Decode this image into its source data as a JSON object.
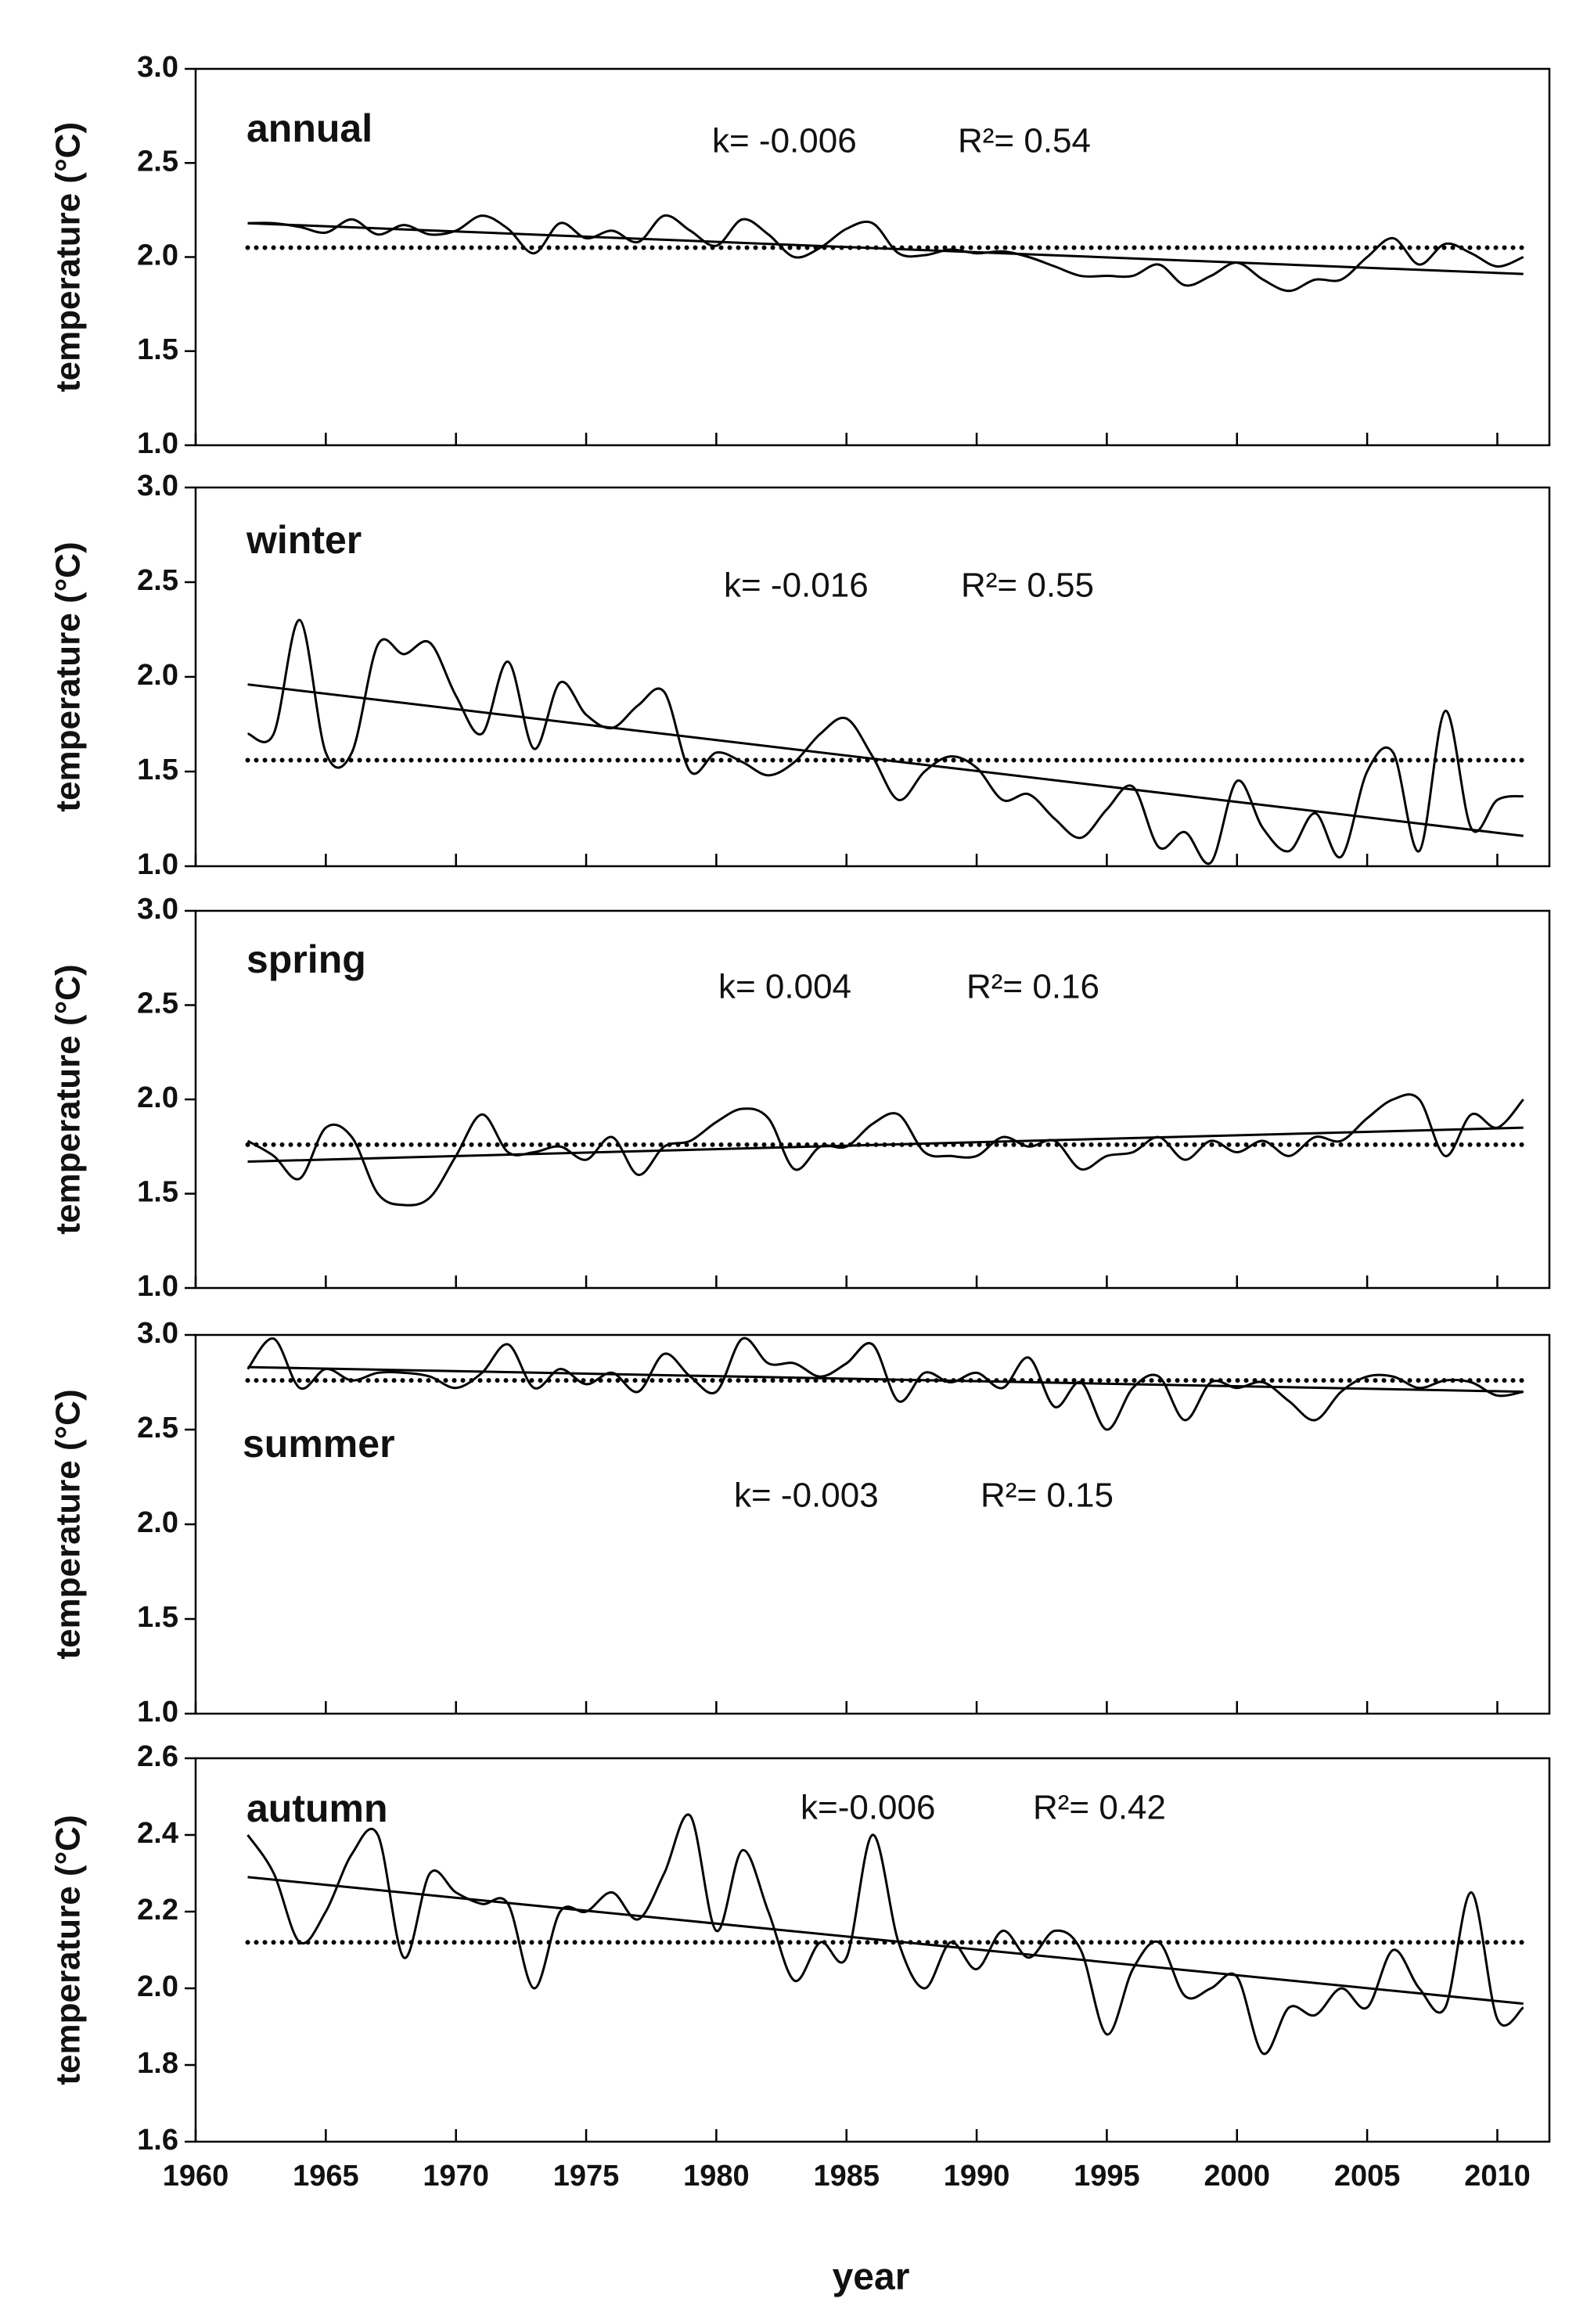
{
  "chart_data": [
    {
      "type": "line",
      "label": "annual",
      "k_text": "k= -0.006",
      "r2_text": "R²= 0.54",
      "ylabel": "temperature (°C)",
      "x": [
        1962,
        1963,
        1964,
        1965,
        1966,
        1967,
        1968,
        1969,
        1970,
        1971,
        1972,
        1973,
        1974,
        1975,
        1976,
        1977,
        1978,
        1979,
        1980,
        1981,
        1982,
        1983,
        1984,
        1985,
        1986,
        1987,
        1988,
        1989,
        1990,
        1991,
        1992,
        1993,
        1994,
        1995,
        1996,
        1997,
        1998,
        1999,
        2000,
        2001,
        2002,
        2003,
        2004,
        2005,
        2006,
        2007,
        2008,
        2009,
        2010,
        2011
      ],
      "series": [
        {
          "color": "#000000",
          "style": "smooth",
          "values": [
            2.18,
            2.18,
            2.16,
            2.13,
            2.2,
            2.12,
            2.17,
            2.12,
            2.14,
            2.22,
            2.15,
            2.02,
            2.18,
            2.1,
            2.14,
            2.08,
            2.22,
            2.14,
            2.06,
            2.2,
            2.12,
            2.0,
            2.05,
            2.15,
            2.18,
            2.02,
            2.01,
            2.04,
            2.02,
            2.03,
            2.0,
            1.95,
            1.9,
            1.9,
            1.9,
            1.96,
            1.85,
            1.9,
            1.97,
            1.88,
            1.82,
            1.88,
            1.88,
            2.0,
            2.1,
            1.96,
            2.07,
            2.02,
            1.95,
            2.0
          ]
        },
        {
          "color": "#000000",
          "style": "solid",
          "x": [
            1962,
            2011
          ],
          "values": [
            2.18,
            1.91
          ]
        },
        {
          "color": "#000000",
          "style": "dotted",
          "x": [
            1962,
            2011
          ],
          "values": [
            2.05,
            2.05
          ]
        }
      ],
      "xlim": [
        1960,
        2012
      ],
      "xticks": [
        1960,
        1965,
        1970,
        1975,
        1980,
        1985,
        1990,
        1995,
        2000,
        2005,
        2010
      ],
      "ylim": [
        1,
        3
      ],
      "yticks": [
        {
          "value": 1,
          "label": "1.0"
        },
        1.5,
        {
          "value": 2,
          "label": "2.0"
        },
        2.5,
        {
          "value": 3,
          "label": "3.0"
        }
      ]
    },
    {
      "type": "line",
      "label": "winter",
      "k_text": "k= -0.016",
      "r2_text": "R²= 0.55",
      "ylabel": "temperature (°C)",
      "x": [
        1962,
        1963,
        1964,
        1965,
        1966,
        1967,
        1968,
        1969,
        1970,
        1971,
        1972,
        1973,
        1974,
        1975,
        1976,
        1977,
        1978,
        1979,
        1980,
        1981,
        1982,
        1983,
        1984,
        1985,
        1986,
        1987,
        1988,
        1989,
        1990,
        1991,
        1992,
        1993,
        1994,
        1995,
        1996,
        1997,
        1998,
        1999,
        2000,
        2001,
        2002,
        2003,
        2004,
        2005,
        2006,
        2007,
        2008,
        2009,
        2010,
        2011
      ],
      "series": [
        {
          "color": "#000000",
          "style": "smooth",
          "values": [
            1.7,
            1.7,
            2.3,
            1.6,
            1.6,
            2.17,
            2.12,
            2.18,
            1.9,
            1.7,
            2.08,
            1.62,
            1.97,
            1.8,
            1.73,
            1.85,
            1.92,
            1.5,
            1.6,
            1.55,
            1.48,
            1.55,
            1.7,
            1.78,
            1.58,
            1.35,
            1.5,
            1.58,
            1.52,
            1.35,
            1.38,
            1.25,
            1.15,
            1.3,
            1.42,
            1.1,
            1.18,
            1.02,
            1.45,
            1.2,
            1.08,
            1.28,
            1.05,
            1.5,
            1.6,
            1.08,
            1.82,
            1.2,
            1.35,
            1.37
          ]
        },
        {
          "color": "#000000",
          "style": "solid",
          "x": [
            1962,
            2011
          ],
          "values": [
            1.96,
            1.16
          ]
        },
        {
          "color": "#000000",
          "style": "dotted",
          "x": [
            1962,
            2011
          ],
          "values": [
            1.56,
            1.56
          ]
        }
      ],
      "xlim": [
        1960,
        2012
      ],
      "xticks": [
        1960,
        1965,
        1970,
        1975,
        1980,
        1985,
        1990,
        1995,
        2000,
        2005,
        2010
      ],
      "ylim": [
        1,
        3
      ],
      "yticks": [
        {
          "value": 1,
          "label": "1.0"
        },
        1.5,
        {
          "value": 2,
          "label": "2.0"
        },
        2.5,
        {
          "value": 3,
          "label": "3.0"
        }
      ]
    },
    {
      "type": "line",
      "label": "spring",
      "k_text": "k=  0.004",
      "r2_text": "R²= 0.16",
      "ylabel": "temperature (°C)",
      "x": [
        1962,
        1963,
        1964,
        1965,
        1966,
        1967,
        1968,
        1969,
        1970,
        1971,
        1972,
        1973,
        1974,
        1975,
        1976,
        1977,
        1978,
        1979,
        1980,
        1981,
        1982,
        1983,
        1984,
        1985,
        1986,
        1987,
        1988,
        1989,
        1990,
        1991,
        1992,
        1993,
        1994,
        1995,
        1996,
        1997,
        1998,
        1999,
        2000,
        2001,
        2002,
        2003,
        2004,
        2005,
        2006,
        2007,
        2008,
        2009,
        2010,
        2011
      ],
      "series": [
        {
          "color": "#000000",
          "style": "smooth",
          "values": [
            1.78,
            1.7,
            1.58,
            1.85,
            1.8,
            1.5,
            1.44,
            1.48,
            1.7,
            1.92,
            1.72,
            1.72,
            1.75,
            1.68,
            1.8,
            1.6,
            1.75,
            1.78,
            1.88,
            1.95,
            1.9,
            1.63,
            1.75,
            1.75,
            1.87,
            1.92,
            1.72,
            1.7,
            1.7,
            1.8,
            1.75,
            1.78,
            1.63,
            1.7,
            1.72,
            1.8,
            1.68,
            1.78,
            1.72,
            1.78,
            1.7,
            1.8,
            1.78,
            1.9,
            2.0,
            2.0,
            1.7,
            1.92,
            1.85,
            2.0
          ]
        },
        {
          "color": "#000000",
          "style": "solid",
          "x": [
            1962,
            2011
          ],
          "values": [
            1.67,
            1.85
          ]
        },
        {
          "color": "#000000",
          "style": "dotted",
          "x": [
            1962,
            2011
          ],
          "values": [
            1.76,
            1.76
          ]
        }
      ],
      "xlim": [
        1960,
        2012
      ],
      "xticks": [
        1960,
        1965,
        1970,
        1975,
        1980,
        1985,
        1990,
        1995,
        2000,
        2005,
        2010
      ],
      "ylim": [
        1,
        3
      ],
      "yticks": [
        {
          "value": 1,
          "label": "1.0"
        },
        1.5,
        {
          "value": 2,
          "label": "2.0"
        },
        2.5,
        {
          "value": 3,
          "label": "3.0"
        }
      ]
    },
    {
      "type": "line",
      "label": "summer",
      "k_text": "k= -0.003",
      "r2_text": "R²= 0.15",
      "ylabel": "temperature (°C)",
      "x": [
        1962,
        1963,
        1964,
        1965,
        1966,
        1967,
        1968,
        1969,
        1970,
        1971,
        1972,
        1973,
        1974,
        1975,
        1976,
        1977,
        1978,
        1979,
        1980,
        1981,
        1982,
        1983,
        1984,
        1985,
        1986,
        1987,
        1988,
        1989,
        1990,
        1991,
        1992,
        1993,
        1994,
        1995,
        1996,
        1997,
        1998,
        1999,
        2000,
        2001,
        2002,
        2003,
        2004,
        2005,
        2006,
        2007,
        2008,
        2009,
        2010,
        2011
      ],
      "series": [
        {
          "color": "#000000",
          "style": "smooth",
          "values": [
            2.82,
            2.98,
            2.72,
            2.82,
            2.76,
            2.8,
            2.8,
            2.78,
            2.72,
            2.8,
            2.95,
            2.72,
            2.82,
            2.74,
            2.8,
            2.7,
            2.9,
            2.78,
            2.7,
            2.98,
            2.85,
            2.85,
            2.78,
            2.85,
            2.95,
            2.65,
            2.8,
            2.75,
            2.8,
            2.72,
            2.88,
            2.62,
            2.75,
            2.5,
            2.72,
            2.78,
            2.55,
            2.75,
            2.72,
            2.75,
            2.65,
            2.55,
            2.7,
            2.78,
            2.78,
            2.72,
            2.76,
            2.75,
            2.68,
            2.7
          ]
        },
        {
          "color": "#000000",
          "style": "solid",
          "x": [
            1962,
            2011
          ],
          "values": [
            2.83,
            2.7
          ]
        },
        {
          "color": "#000000",
          "style": "dotted",
          "x": [
            1962,
            2011
          ],
          "values": [
            2.76,
            2.76
          ]
        }
      ],
      "xlim": [
        1960,
        2012
      ],
      "xticks": [
        1960,
        1965,
        1970,
        1975,
        1980,
        1985,
        1990,
        1995,
        2000,
        2005,
        2010
      ],
      "ylim": [
        1,
        3
      ],
      "yticks": [
        {
          "value": 1,
          "label": "1.0"
        },
        1.5,
        {
          "value": 2,
          "label": "2.0"
        },
        2.5,
        {
          "value": 3,
          "label": "3.0"
        }
      ]
    },
    {
      "type": "line",
      "label": "autumn",
      "k_text": "k=-0.006",
      "r2_text": "R²= 0.42",
      "ylabel": "temperature (°C)",
      "xlabel": "year",
      "x": [
        1962,
        1963,
        1964,
        1965,
        1966,
        1967,
        1968,
        1969,
        1970,
        1971,
        1972,
        1973,
        1974,
        1975,
        1976,
        1977,
        1978,
        1979,
        1980,
        1981,
        1982,
        1983,
        1984,
        1985,
        1986,
        1987,
        1988,
        1989,
        1990,
        1991,
        1992,
        1993,
        1994,
        1995,
        1996,
        1997,
        1998,
        1999,
        2000,
        2001,
        2002,
        2003,
        2004,
        2005,
        2006,
        2007,
        2008,
        2009,
        2010,
        2011
      ],
      "series": [
        {
          "color": "#000000",
          "style": "smooth",
          "values": [
            2.4,
            2.3,
            2.12,
            2.2,
            2.35,
            2.4,
            2.08,
            2.3,
            2.25,
            2.22,
            2.22,
            2.0,
            2.2,
            2.2,
            2.25,
            2.18,
            2.3,
            2.45,
            2.15,
            2.36,
            2.2,
            2.02,
            2.12,
            2.08,
            2.4,
            2.12,
            2.0,
            2.12,
            2.05,
            2.15,
            2.08,
            2.15,
            2.1,
            1.88,
            2.05,
            2.12,
            1.98,
            2.0,
            2.03,
            1.83,
            1.95,
            1.93,
            2.0,
            1.95,
            2.1,
            2.0,
            1.95,
            2.25,
            1.92,
            1.95
          ]
        },
        {
          "color": "#000000",
          "style": "solid",
          "x": [
            1962,
            2011
          ],
          "values": [
            2.29,
            1.96
          ]
        },
        {
          "color": "#000000",
          "style": "dotted",
          "x": [
            1962,
            2011
          ],
          "values": [
            2.12,
            2.12
          ]
        }
      ],
      "xlim": [
        1960,
        2012
      ],
      "xticks": [
        1960,
        1965,
        1970,
        1975,
        1980,
        1985,
        1990,
        1995,
        2000,
        2005,
        2010
      ],
      "show_xtick_labels": true,
      "ylim": [
        1.6,
        2.6
      ],
      "yticks": [
        1.6,
        1.8,
        {
          "value": 2,
          "label": "2.0"
        },
        2.2,
        2.4,
        2.6
      ]
    }
  ]
}
